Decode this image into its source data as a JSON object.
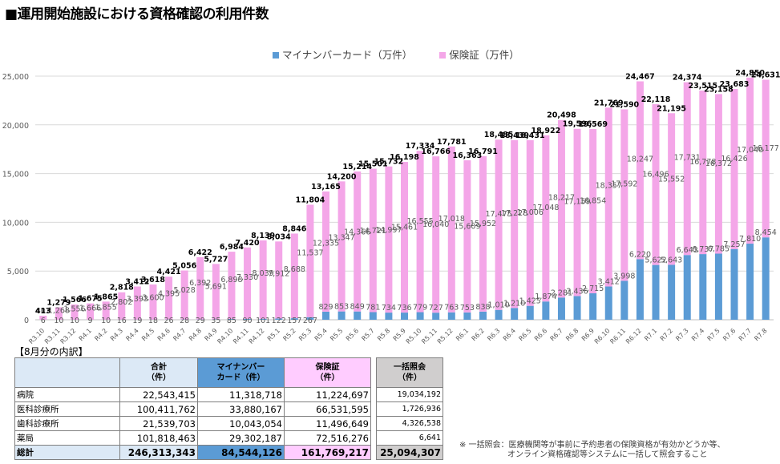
{
  "title": "■運用開始施設における資格確認の利用件数",
  "colors": {
    "card": "#5b9bd5",
    "insurance": "#f4a6e8"
  },
  "chart_data": {
    "type": "bar",
    "stacked": true,
    "title": "",
    "xlabel": "",
    "ylabel": "",
    "ylim": [
      0,
      25000
    ],
    "yticks": [
      0,
      5000,
      10000,
      15000,
      20000,
      25000
    ],
    "ytick_labels": [
      "0",
      "5,000",
      "10,000",
      "15,000",
      "20,000",
      "25,000"
    ],
    "grid": true,
    "legend_position": "top-center",
    "categories": [
      "R3.10",
      "R3.11",
      "R3.12",
      "R4.1",
      "R4.2",
      "R4.3",
      "R4.4",
      "R4.5",
      "R4.6",
      "R4.7",
      "R4.8",
      "R4.9",
      "R4.10",
      "R4.11",
      "R4.12",
      "R5.1",
      "R5.2",
      "R5.3",
      "R5.4",
      "R5.5",
      "R5.6",
      "R5.7",
      "R5.8",
      "R5.9",
      "R5.10",
      "R5.11",
      "R5.12",
      "R6.1",
      "R6.2",
      "R6.3",
      "R6.4",
      "R6.5",
      "R6.6",
      "R6.7",
      "R6.8",
      "R6.9",
      "R6.10",
      "R6.11",
      "R6.12",
      "R7.1",
      "R7.2",
      "R7.3",
      "R7.4",
      "R7.5",
      "R7.6",
      "R7.7",
      "R7.8"
    ],
    "series": [
      {
        "name": "マイナンバーカード（万件）",
        "values": [
          6,
          10,
          10,
          9,
          10,
          16,
          19,
          18,
          26,
          28,
          29,
          35,
          85,
          90,
          101,
          122,
          157,
          267,
          829,
          853,
          849,
          781,
          734,
          736,
          779,
          727,
          763,
          753,
          838,
          1010,
          1210,
          1425,
          1874,
          2281,
          2436,
          2715,
          3412,
          3998,
          6220,
          5622,
          5643,
          6643,
          6737,
          6785,
          7257,
          7810,
          8454
        ]
      },
      {
        "name": "保険証（万件）",
        "values": [
          407,
          1268,
          1556,
          1666,
          1855,
          2802,
          3393,
          3600,
          4395,
          5028,
          6392,
          5691,
          6898,
          7330,
          8039,
          7912,
          8688,
          11537,
          12335,
          13347,
          14366,
          14721,
          14997,
          15461,
          16555,
          16040,
          17018,
          15609,
          15952,
          17475,
          17228,
          17006,
          17048,
          18217,
          17159,
          16854,
          18357,
          17592,
          18247,
          16496,
          15552,
          17731,
          16778,
          16372,
          16426,
          17040,
          16177
        ]
      }
    ],
    "totals": [
      413,
      1279,
      1566,
      1675,
      1865,
      2818,
      3412,
      3618,
      4421,
      5056,
      6422,
      5727,
      6984,
      7420,
      8139,
      8034,
      8846,
      11804,
      13165,
      14200,
      15214,
      15501,
      15732,
      16198,
      17334,
      16766,
      17781,
      16363,
      16791,
      18485,
      18439,
      18431,
      18922,
      20498,
      19596,
      19569,
      21769,
      21590,
      24467,
      22118,
      21195,
      24374,
      23515,
      23158,
      23683,
      24850,
      24631
    ]
  },
  "legend": [
    {
      "label": "マイナンバーカード（万件）"
    },
    {
      "label": "保険証（万件）"
    }
  ],
  "breakdown": {
    "title": "【8月分の内訳】",
    "headers": [
      "",
      "合計\n（件）",
      "マイナンバー\nカード（件）",
      "保険証\n（件）"
    ],
    "rows": [
      {
        "label": "病院",
        "total": "22,543,415",
        "card": "11,318,718",
        "insurance": "11,224,697"
      },
      {
        "label": "医科診療所",
        "total": "100,411,762",
        "card": "33,880,167",
        "insurance": "66,531,595"
      },
      {
        "label": "歯科診療所",
        "total": "21,539,703",
        "card": "10,043,054",
        "insurance": "11,496,649"
      },
      {
        "label": "薬局",
        "total": "101,818,463",
        "card": "29,302,187",
        "insurance": "72,516,276"
      }
    ],
    "grand_total": {
      "label": "総計",
      "total": "246,313,343",
      "card": "84,544,126",
      "insurance": "161,769,217"
    }
  },
  "bulk": {
    "header": "一括照会\n（件）",
    "rows": [
      "19,034,192",
      "1,726,936",
      "4,326,538",
      "6,641"
    ],
    "total": "25,094,307"
  },
  "note": {
    "line1": "※ 一括照会：医療機関等が事前に予約患者の保険資格が有効かどうか等、",
    "line2": "オンライン資格確認等システムに一括して照会すること"
  }
}
